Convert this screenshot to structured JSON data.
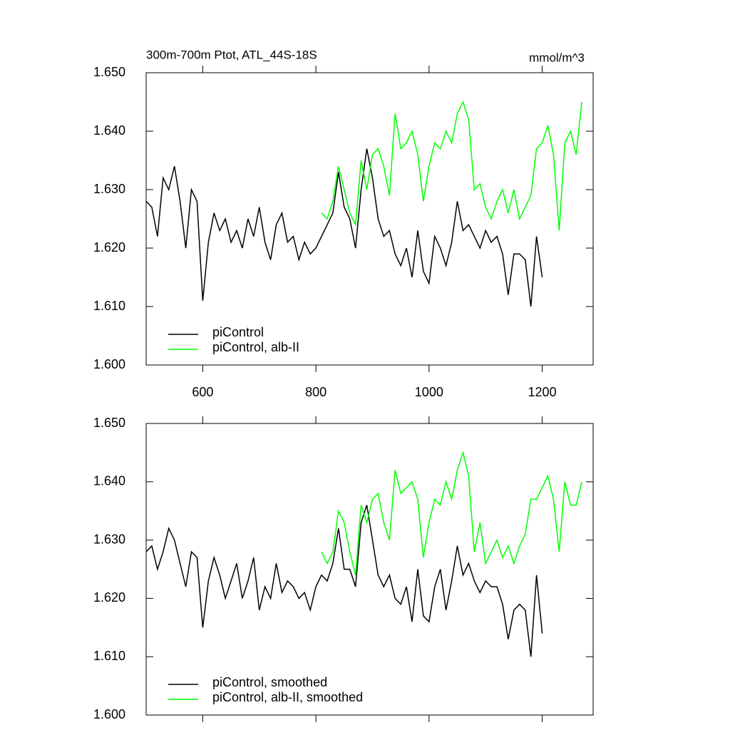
{
  "chart_data": [
    {
      "type": "line",
      "title": "300m-700m Ptot, ATL_44S-18S",
      "units": "mmol/m^3",
      "xlim": [
        500,
        1290
      ],
      "xticks": [
        600,
        800,
        1000,
        1200
      ],
      "show_xtick_labels": true,
      "ylim": [
        1.6,
        1.65
      ],
      "yticks": [
        {
          "value": 1.6,
          "label": "1.600"
        },
        {
          "value": 1.61,
          "label": "1.610"
        },
        {
          "value": 1.62,
          "label": "1.620"
        },
        {
          "value": 1.63,
          "label": "1.630"
        },
        {
          "value": 1.64,
          "label": "1.640"
        },
        {
          "value": 1.65,
          "label": "1.650"
        }
      ],
      "legend": "lower left",
      "series": [
        {
          "name": "piControl",
          "color": "#000000",
          "x": [
            500,
            510,
            520,
            530,
            540,
            550,
            560,
            570,
            580,
            590,
            600,
            610,
            620,
            630,
            640,
            650,
            660,
            670,
            680,
            690,
            700,
            710,
            720,
            730,
            740,
            750,
            760,
            770,
            780,
            790,
            800,
            810,
            820,
            830,
            840,
            850,
            860,
            870,
            880,
            890,
            900,
            910,
            920,
            930,
            940,
            950,
            960,
            970,
            980,
            990,
            1000,
            1010,
            1020,
            1030,
            1040,
            1050,
            1060,
            1070,
            1080,
            1090,
            1100,
            1110,
            1120,
            1130,
            1140,
            1150,
            1160,
            1170,
            1180,
            1190,
            1200
          ],
          "values": [
            1.628,
            1.627,
            1.622,
            1.632,
            1.63,
            1.634,
            1.628,
            1.62,
            1.63,
            1.628,
            1.611,
            1.621,
            1.626,
            1.623,
            1.625,
            1.621,
            1.623,
            1.62,
            1.625,
            1.622,
            1.627,
            1.621,
            1.618,
            1.624,
            1.626,
            1.621,
            1.622,
            1.618,
            1.621,
            1.619,
            1.62,
            1.622,
            1.624,
            1.626,
            1.633,
            1.627,
            1.625,
            1.62,
            1.63,
            1.637,
            1.632,
            1.625,
            1.622,
            1.623,
            1.619,
            1.617,
            1.62,
            1.615,
            1.623,
            1.616,
            1.614,
            1.622,
            1.62,
            1.617,
            1.621,
            1.628,
            1.623,
            1.624,
            1.622,
            1.62,
            1.623,
            1.621,
            1.622,
            1.619,
            1.612,
            1.619,
            1.619,
            1.618,
            1.61,
            1.622,
            1.615
          ]
        },
        {
          "name": "piControl, alb-II",
          "color": "#00ff00",
          "x": [
            810,
            820,
            830,
            840,
            850,
            860,
            870,
            880,
            890,
            900,
            910,
            920,
            930,
            940,
            950,
            960,
            970,
            980,
            990,
            1000,
            1010,
            1020,
            1030,
            1040,
            1050,
            1060,
            1070,
            1080,
            1090,
            1100,
            1110,
            1120,
            1130,
            1140,
            1150,
            1160,
            1170,
            1180,
            1190,
            1200,
            1210,
            1220,
            1230,
            1240,
            1250,
            1260,
            1270
          ],
          "values": [
            1.626,
            1.625,
            1.628,
            1.634,
            1.63,
            1.626,
            1.624,
            1.635,
            1.63,
            1.636,
            1.637,
            1.634,
            1.629,
            1.643,
            1.637,
            1.638,
            1.64,
            1.636,
            1.628,
            1.634,
            1.638,
            1.637,
            1.64,
            1.638,
            1.643,
            1.645,
            1.642,
            1.63,
            1.631,
            1.627,
            1.625,
            1.628,
            1.63,
            1.626,
            1.63,
            1.625,
            1.627,
            1.629,
            1.637,
            1.638,
            1.641,
            1.636,
            1.623,
            1.638,
            1.64,
            1.636,
            1.645
          ]
        }
      ]
    },
    {
      "type": "line",
      "xlim": [
        500,
        1290
      ],
      "xticks": [
        600,
        800,
        1000,
        1200
      ],
      "show_xtick_labels": false,
      "ylim": [
        1.6,
        1.65
      ],
      "yticks": [
        {
          "value": 1.6,
          "label": "1.600"
        },
        {
          "value": 1.61,
          "label": "1.610"
        },
        {
          "value": 1.62,
          "label": "1.620"
        },
        {
          "value": 1.63,
          "label": "1.630"
        },
        {
          "value": 1.64,
          "label": "1.640"
        },
        {
          "value": 1.65,
          "label": "1.650"
        }
      ],
      "legend": "lower left",
      "series": [
        {
          "name": "piControl, smoothed",
          "color": "#000000",
          "x": [
            500,
            510,
            520,
            530,
            540,
            550,
            560,
            570,
            580,
            590,
            600,
            610,
            620,
            630,
            640,
            650,
            660,
            670,
            680,
            690,
            700,
            710,
            720,
            730,
            740,
            750,
            760,
            770,
            780,
            790,
            800,
            810,
            820,
            830,
            840,
            850,
            860,
            870,
            880,
            890,
            900,
            910,
            920,
            930,
            940,
            950,
            960,
            970,
            980,
            990,
            1000,
            1010,
            1020,
            1030,
            1040,
            1050,
            1060,
            1070,
            1080,
            1090,
            1100,
            1110,
            1120,
            1130,
            1140,
            1150,
            1160,
            1170,
            1180,
            1190,
            1200
          ],
          "values": [
            1.628,
            1.629,
            1.625,
            1.628,
            1.632,
            1.63,
            1.626,
            1.622,
            1.628,
            1.627,
            1.615,
            1.623,
            1.627,
            1.624,
            1.62,
            1.623,
            1.626,
            1.62,
            1.623,
            1.627,
            1.618,
            1.622,
            1.62,
            1.626,
            1.621,
            1.623,
            1.622,
            1.62,
            1.621,
            1.618,
            1.622,
            1.624,
            1.623,
            1.626,
            1.632,
            1.625,
            1.625,
            1.622,
            1.633,
            1.636,
            1.63,
            1.624,
            1.622,
            1.624,
            1.62,
            1.619,
            1.622,
            1.616,
            1.625,
            1.617,
            1.616,
            1.622,
            1.625,
            1.618,
            1.623,
            1.629,
            1.624,
            1.626,
            1.623,
            1.621,
            1.623,
            1.622,
            1.622,
            1.619,
            1.613,
            1.618,
            1.619,
            1.618,
            1.61,
            1.624,
            1.614
          ]
        },
        {
          "name": "piControl, alb-II, smoothed",
          "color": "#00ff00",
          "x": [
            810,
            820,
            830,
            840,
            850,
            860,
            870,
            880,
            890,
            900,
            910,
            920,
            930,
            940,
            950,
            960,
            970,
            980,
            990,
            1000,
            1010,
            1020,
            1030,
            1040,
            1050,
            1060,
            1070,
            1080,
            1090,
            1100,
            1110,
            1120,
            1130,
            1140,
            1150,
            1160,
            1170,
            1180,
            1190,
            1200,
            1210,
            1220,
            1230,
            1240,
            1250,
            1260,
            1270
          ],
          "values": [
            1.628,
            1.626,
            1.628,
            1.635,
            1.633,
            1.628,
            1.624,
            1.636,
            1.633,
            1.637,
            1.638,
            1.633,
            1.63,
            1.642,
            1.638,
            1.639,
            1.64,
            1.637,
            1.627,
            1.633,
            1.637,
            1.636,
            1.64,
            1.637,
            1.642,
            1.645,
            1.641,
            1.628,
            1.633,
            1.626,
            1.628,
            1.63,
            1.627,
            1.629,
            1.626,
            1.629,
            1.631,
            1.637,
            1.637,
            1.639,
            1.641,
            1.637,
            1.628,
            1.64,
            1.636,
            1.636,
            1.64
          ]
        }
      ]
    }
  ]
}
